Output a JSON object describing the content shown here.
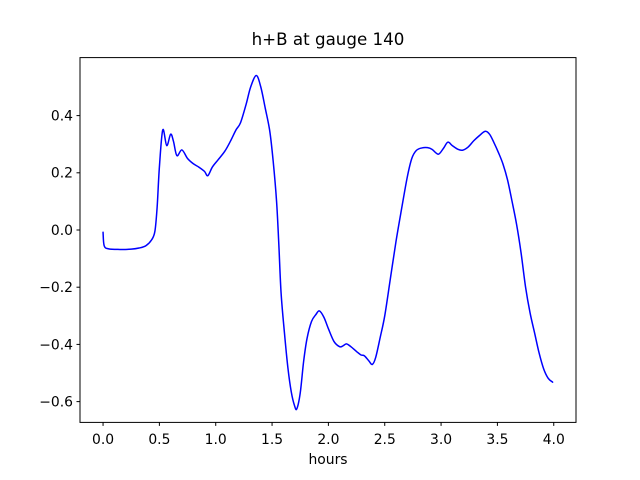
{
  "figure": {
    "background": "#ffffff",
    "frame_color": "#000000"
  },
  "chart_data": {
    "type": "line",
    "title": "h+B at gauge 140",
    "xlabel": "hours",
    "ylabel": "",
    "grid": false,
    "legend": null,
    "line_color": "#0000ff",
    "line_width": 1.5,
    "xlim": [
      -0.2046,
      4.1975
    ],
    "ylim": [
      -0.6727,
      0.6028
    ],
    "xticks": {
      "values": [
        0,
        0.5,
        1.0,
        1.5,
        2.0,
        2.5,
        3.0,
        3.5,
        4.0
      ],
      "labels": [
        "0.0",
        "0.5",
        "1.0",
        "1.5",
        "2.0",
        "2.5",
        "3.0",
        "3.5",
        "4.0"
      ]
    },
    "yticks": {
      "values": [
        0.4,
        0.2,
        0.0,
        -0.2,
        -0.4,
        -0.6
      ],
      "labels": [
        "0.4",
        "0.2",
        "0.0",
        "−0.2",
        "−0.4",
        "−0.6"
      ]
    },
    "series": [
      {
        "name": "h+B",
        "x": [
          0.0,
          0.01,
          0.05,
          0.15,
          0.25,
          0.32,
          0.38,
          0.43,
          0.46,
          0.48,
          0.5,
          0.53,
          0.565,
          0.6,
          0.625,
          0.655,
          0.7,
          0.75,
          0.8,
          0.85,
          0.9,
          0.93,
          0.97,
          1.02,
          1.08,
          1.13,
          1.18,
          1.22,
          1.27,
          1.31,
          1.36,
          1.4,
          1.44,
          1.48,
          1.51,
          1.54,
          1.56,
          1.58,
          1.61,
          1.64,
          1.67,
          1.7,
          1.72,
          1.75,
          1.78,
          1.81,
          1.85,
          1.89,
          1.92,
          1.96,
          2.0,
          2.05,
          2.1,
          2.13,
          2.16,
          2.2,
          2.25,
          2.29,
          2.32,
          2.36,
          2.39,
          2.42,
          2.46,
          2.5,
          2.55,
          2.6,
          2.65,
          2.7,
          2.74,
          2.78,
          2.83,
          2.88,
          2.92,
          2.975,
          3.02,
          3.06,
          3.1,
          3.15,
          3.19,
          3.24,
          3.29,
          3.34,
          3.39,
          3.43,
          3.47,
          3.51,
          3.55,
          3.59,
          3.63,
          3.67,
          3.71,
          3.75,
          3.79,
          3.83,
          3.87,
          3.91,
          3.95,
          3.99
        ],
        "y": [
          -0.008,
          -0.055,
          -0.066,
          -0.068,
          -0.067,
          -0.063,
          -0.055,
          -0.035,
          -0.005,
          0.08,
          0.22,
          0.35,
          0.295,
          0.335,
          0.31,
          0.26,
          0.28,
          0.25,
          0.232,
          0.22,
          0.205,
          0.19,
          0.22,
          0.245,
          0.275,
          0.31,
          0.35,
          0.375,
          0.44,
          0.5,
          0.54,
          0.5,
          0.425,
          0.345,
          0.24,
          0.1,
          -0.05,
          -0.22,
          -0.36,
          -0.48,
          -0.565,
          -0.615,
          -0.625,
          -0.57,
          -0.46,
          -0.38,
          -0.32,
          -0.295,
          -0.283,
          -0.305,
          -0.345,
          -0.39,
          -0.408,
          -0.405,
          -0.398,
          -0.408,
          -0.425,
          -0.437,
          -0.44,
          -0.458,
          -0.47,
          -0.445,
          -0.375,
          -0.3,
          -0.17,
          -0.04,
          0.075,
          0.185,
          0.25,
          0.278,
          0.287,
          0.288,
          0.282,
          0.265,
          0.285,
          0.307,
          0.295,
          0.282,
          0.279,
          0.29,
          0.312,
          0.33,
          0.345,
          0.335,
          0.305,
          0.27,
          0.23,
          0.175,
          0.1,
          0.02,
          -0.08,
          -0.2,
          -0.29,
          -0.36,
          -0.43,
          -0.485,
          -0.518,
          -0.532
        ]
      }
    ]
  }
}
